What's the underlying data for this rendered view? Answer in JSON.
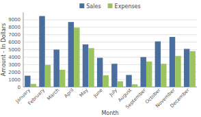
{
  "chart_data": {
    "type": "bar",
    "xlabel": "Month",
    "ylabel": "Amount - In Dollars",
    "categories": [
      "January",
      "February",
      "March",
      "April",
      "May",
      "June",
      "July",
      "August",
      "September",
      "October",
      "November",
      "December"
    ],
    "series": [
      {
        "name": "Sales",
        "color": "#4a6f9e",
        "values": [
          1500,
          9500,
          5000,
          8700,
          5700,
          3900,
          3100,
          1600,
          4000,
          6100,
          6700,
          5100
        ]
      },
      {
        "name": "Expenses",
        "color": "#9bc45e",
        "values": [
          400,
          2950,
          2300,
          7950,
          5200,
          1550,
          750,
          350,
          3400,
          3100,
          4150,
          4800
        ]
      }
    ],
    "ylim": [
      0,
      10000
    ],
    "yticks": [
      0,
      1000,
      2000,
      3000,
      4000,
      5000,
      6000,
      7000,
      8000,
      9000
    ],
    "grid": true,
    "legend": "upper center"
  }
}
